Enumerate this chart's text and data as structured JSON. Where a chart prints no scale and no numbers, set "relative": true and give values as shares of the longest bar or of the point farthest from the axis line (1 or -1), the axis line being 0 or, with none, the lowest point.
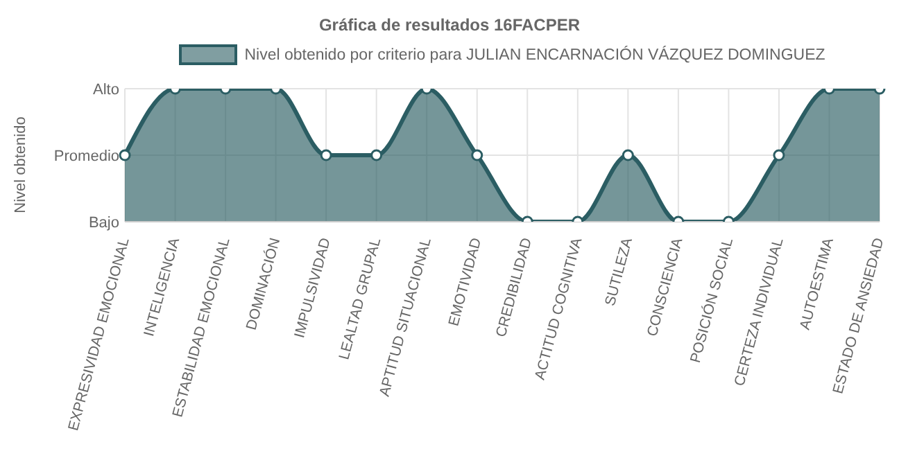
{
  "chart_data": {
    "type": "area",
    "title": "Gráfica de resultados 16FACPER",
    "ylabel": "Nivel obtenido",
    "relative": true,
    "categories": [
      "EXPRESIVIDAD EMOCIONAL",
      "INTELIGENCIA",
      "ESTABILIDAD EMOCIONAL",
      "DOMINACIÓN",
      "IMPULSIVIDAD",
      "LEALTAD GRUPAL",
      "APTITUD SITUACIONAL",
      "EMOTIVIDAD",
      "CREDIBILIDAD",
      "ACTITUD COGNITIVA",
      "SUTILEZA",
      "CONSCIENCIA",
      "POSICIÓN SOCIAL",
      "CERTEZA INDIVIDUAL",
      "AUTOESTIMA",
      "ESTADO DE ANSIEDAD"
    ],
    "series": [
      {
        "name": "Nivel obtenido por criterio para JULIAN ENCARNACIÓN VÁZQUEZ DOMINGUEZ",
        "color": "#2b5d63",
        "values": [
          0.5,
          1,
          1,
          1,
          0.5,
          0.5,
          1,
          0.5,
          0,
          0,
          0.5,
          0,
          0,
          0.5,
          1,
          1
        ]
      }
    ],
    "annotations": [
      "Bajo",
      "Promedio",
      "Alto"
    ],
    "grid": true,
    "legend": "top",
    "marker": "circle",
    "line_style": "solid"
  }
}
